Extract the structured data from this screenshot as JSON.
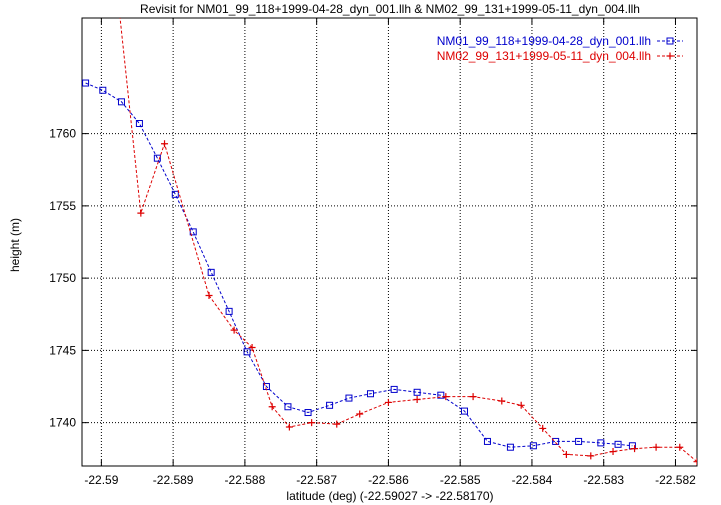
{
  "chart_data": {
    "type": "line",
    "title": "Revisit for NM01_99_118+1999-04-28_dyn_001.llh & NM02_99_131+1999-05-11_dyn_004.llh",
    "xlabel": "latitude (deg) (-22.59027 -> -22.58170)",
    "ylabel": "height (m)",
    "xlim": [
      -22.59027,
      -22.5817
    ],
    "ylim": [
      1737.0,
      1768.0
    ],
    "grid": true,
    "legend_position": "top-right",
    "x_ticks": [
      -22.59,
      -22.589,
      -22.588,
      -22.587,
      -22.586,
      -22.585,
      -22.584,
      -22.583,
      -22.582
    ],
    "x_tick_labels": [
      "-22.59",
      "-22.589",
      "-22.588",
      "-22.587",
      "-22.586",
      "-22.585",
      "-22.584",
      "-22.583",
      "-22.582"
    ],
    "y_ticks": [
      1740,
      1745,
      1750,
      1755,
      1760
    ],
    "y_tick_labels": [
      "1740",
      "1745",
      "1750",
      "1755",
      "1760"
    ],
    "series": [
      {
        "name": "NM01_99_118+1999-04-28_dyn_001.llh",
        "color": "#0000cc",
        "marker": "square",
        "x": [
          -22.59022,
          -22.58998,
          -22.58972,
          -22.58947,
          -22.58922,
          -22.58897,
          -22.58872,
          -22.58847,
          -22.58822,
          -22.58797,
          -22.5877,
          -22.5874,
          -22.58712,
          -22.58682,
          -22.58655,
          -22.58625,
          -22.58592,
          -22.5856,
          -22.58527,
          -22.58494,
          -22.58462,
          -22.5843,
          -22.58398,
          -22.58367,
          -22.58335,
          -22.58304,
          -22.5828,
          -22.5826
        ],
        "y": [
          1763.5,
          1763.0,
          1762.2,
          1760.7,
          1758.3,
          1755.8,
          1753.2,
          1750.4,
          1747.7,
          1744.9,
          1742.5,
          1741.1,
          1740.7,
          1741.2,
          1741.7,
          1742.0,
          1742.3,
          1742.1,
          1741.9,
          1740.8,
          1738.7,
          1738.3,
          1738.4,
          1738.7,
          1738.7,
          1738.6,
          1738.5,
          1738.4
        ]
      },
      {
        "name": "NM02_99_131+1999-05-11_dyn_004.llh",
        "color": "#dd0000",
        "marker": "plus",
        "x": [
          -22.58975,
          -22.58945,
          -22.58912,
          -22.5885,
          -22.58815,
          -22.5879,
          -22.58762,
          -22.58738,
          -22.58707,
          -22.58672,
          -22.5864,
          -22.586,
          -22.5856,
          -22.5852,
          -22.58482,
          -22.58442,
          -22.58415,
          -22.58385,
          -22.58352,
          -22.58318,
          -22.58287,
          -22.58257,
          -22.58227,
          -22.58194,
          -22.5817
        ],
        "y": [
          1768.5,
          1754.5,
          1759.3,
          1748.8,
          1746.4,
          1745.2,
          1741.1,
          1739.7,
          1740.0,
          1739.9,
          1740.6,
          1741.4,
          1741.6,
          1741.8,
          1741.8,
          1741.5,
          1741.2,
          1739.6,
          1737.8,
          1737.7,
          1738.0,
          1738.2,
          1738.3,
          1738.3,
          1737.3
        ]
      }
    ]
  }
}
